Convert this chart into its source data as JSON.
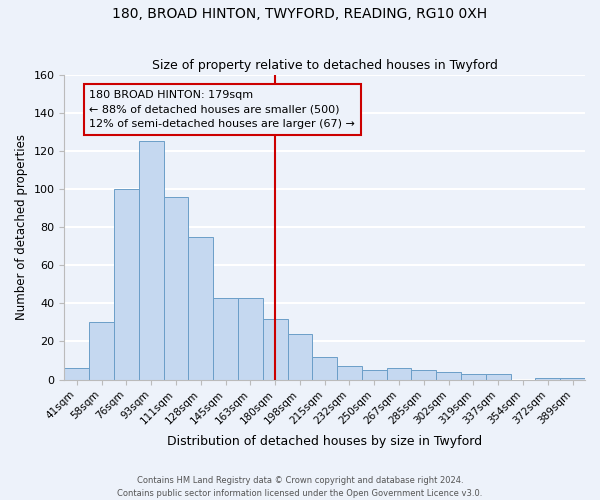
{
  "title1": "180, BROAD HINTON, TWYFORD, READING, RG10 0XH",
  "title2": "Size of property relative to detached houses in Twyford",
  "xlabel": "Distribution of detached houses by size in Twyford",
  "ylabel": "Number of detached properties",
  "bin_labels": [
    "41sqm",
    "58sqm",
    "76sqm",
    "93sqm",
    "111sqm",
    "128sqm",
    "145sqm",
    "163sqm",
    "180sqm",
    "198sqm",
    "215sqm",
    "232sqm",
    "250sqm",
    "267sqm",
    "285sqm",
    "302sqm",
    "319sqm",
    "337sqm",
    "354sqm",
    "372sqm",
    "389sqm"
  ],
  "bar_heights": [
    6,
    30,
    100,
    125,
    96,
    75,
    43,
    43,
    32,
    24,
    12,
    7,
    5,
    6,
    5,
    4,
    3,
    3,
    0,
    1,
    1
  ],
  "bar_color": "#c5d8f0",
  "bar_edge_color": "#6b9ec8",
  "vline_color": "#cc0000",
  "annotation_line1": "180 BROAD HINTON: 179sqm",
  "annotation_line2": "← 88% of detached houses are smaller (500)",
  "annotation_line3": "12% of semi-detached houses are larger (67) →",
  "annotation_box_color": "#cc0000",
  "ylim": [
    0,
    160
  ],
  "yticks": [
    0,
    20,
    40,
    60,
    80,
    100,
    120,
    140,
    160
  ],
  "footer1": "Contains HM Land Registry data © Crown copyright and database right 2024.",
  "footer2": "Contains public sector information licensed under the Open Government Licence v3.0.",
  "bg_color": "#edf2fa",
  "grid_color": "#ffffff"
}
